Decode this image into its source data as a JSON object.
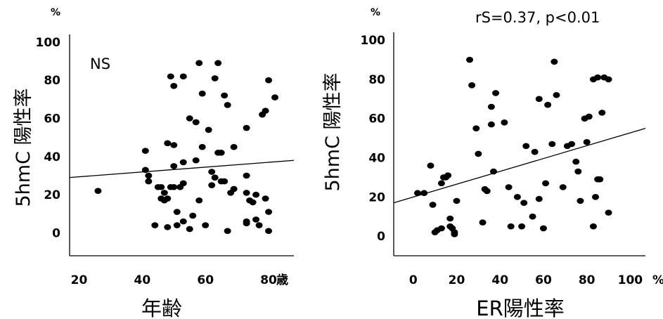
{
  "chart_data": [
    {
      "type": "scatter",
      "title": "",
      "xlabel": "年齢",
      "ylabel": "5hmC 陽性率",
      "y_unit": "%",
      "x_unit": "歳",
      "annotation": "NS",
      "xlim": [
        17,
        88
      ],
      "ylim": [
        -12,
        104
      ],
      "xticks": [
        "20",
        "40",
        "60",
        "80"
      ],
      "yticks": [
        "0",
        "20",
        "40",
        "60",
        "80",
        "100"
      ],
      "trendline": [
        [
          17,
          29
        ],
        [
          88,
          38
        ]
      ],
      "points": [
        [
          26,
          22
        ],
        [
          41,
          43
        ],
        [
          41,
          33
        ],
        [
          42,
          30
        ],
        [
          42,
          27
        ],
        [
          44,
          4
        ],
        [
          45,
          24
        ],
        [
          46,
          18
        ],
        [
          46,
          24
        ],
        [
          47,
          17
        ],
        [
          47,
          21
        ],
        [
          48,
          47
        ],
        [
          48,
          18
        ],
        [
          48,
          3
        ],
        [
          49,
          82
        ],
        [
          49,
          24
        ],
        [
          50,
          77
        ],
        [
          50,
          46
        ],
        [
          50,
          35
        ],
        [
          50,
          24
        ],
        [
          51,
          11
        ],
        [
          51,
          4
        ],
        [
          52,
          24
        ],
        [
          53,
          82
        ],
        [
          53,
          37
        ],
        [
          53,
          26
        ],
        [
          53,
          6
        ],
        [
          55,
          60
        ],
        [
          55,
          2
        ],
        [
          56,
          9
        ],
        [
          57,
          58
        ],
        [
          57,
          38
        ],
        [
          58,
          89
        ],
        [
          58,
          17
        ],
        [
          59,
          73
        ],
        [
          59,
          45
        ],
        [
          60,
          4
        ],
        [
          61,
          54
        ],
        [
          62,
          25
        ],
        [
          62,
          32
        ],
        [
          63,
          29
        ],
        [
          63,
          81
        ],
        [
          64,
          89
        ],
        [
          64,
          42
        ],
        [
          65,
          42
        ],
        [
          65,
          27
        ],
        [
          66,
          72
        ],
        [
          66,
          27
        ],
        [
          67,
          67
        ],
        [
          67,
          1
        ],
        [
          68,
          21
        ],
        [
          69,
          23
        ],
        [
          69,
          45
        ],
        [
          73,
          55
        ],
        [
          73,
          30
        ],
        [
          73,
          21
        ],
        [
          73,
          6
        ],
        [
          73,
          5
        ],
        [
          74,
          17
        ],
        [
          75,
          16
        ],
        [
          76,
          20
        ],
        [
          76,
          7
        ],
        [
          77,
          4
        ],
        [
          78,
          62
        ],
        [
          79,
          64
        ],
        [
          79,
          18
        ],
        [
          80,
          80
        ],
        [
          80,
          11
        ],
        [
          80,
          1
        ],
        [
          82,
          71
        ]
      ]
    },
    {
      "type": "scatter",
      "title": "",
      "xlabel": "ER陽性率",
      "ylabel": "5hmC 陽性率",
      "y_unit": "%",
      "x_unit": "%",
      "annotation": "rS=0.37, p<0.01",
      "xlim": [
        -9,
        107
      ],
      "ylim": [
        -10,
        104
      ],
      "xticks": [
        "0",
        "20",
        "40",
        "60",
        "80",
        "100"
      ],
      "yticks": [
        "0",
        "20",
        "40",
        "60",
        "80",
        "100"
      ],
      "trendline": [
        [
          -9,
          17
        ],
        [
          107,
          55
        ]
      ],
      "points": [
        [
          2,
          22
        ],
        [
          5,
          22
        ],
        [
          8,
          36
        ],
        [
          9,
          16
        ],
        [
          10,
          2
        ],
        [
          11,
          3
        ],
        [
          13,
          27
        ],
        [
          13,
          4
        ],
        [
          14,
          30
        ],
        [
          15,
          30
        ],
        [
          16,
          31
        ],
        [
          17,
          9
        ],
        [
          17,
          5
        ],
        [
          18,
          4
        ],
        [
          19,
          1
        ],
        [
          19,
          2
        ],
        [
          20,
          18
        ],
        [
          26,
          90
        ],
        [
          27,
          77
        ],
        [
          29,
          55
        ],
        [
          30,
          42
        ],
        [
          32,
          7
        ],
        [
          33,
          24
        ],
        [
          34,
          23
        ],
        [
          36,
          57
        ],
        [
          36,
          66
        ],
        [
          37,
          33
        ],
        [
          38,
          73
        ],
        [
          42,
          58
        ],
        [
          44,
          25
        ],
        [
          45,
          5
        ],
        [
          48,
          20
        ],
        [
          50,
          5
        ],
        [
          51,
          17
        ],
        [
          52,
          46
        ],
        [
          55,
          10
        ],
        [
          56,
          43
        ],
        [
          58,
          19
        ],
        [
          58,
          70
        ],
        [
          60,
          4
        ],
        [
          61,
          27
        ],
        [
          62,
          67
        ],
        [
          64,
          47
        ],
        [
          65,
          89
        ],
        [
          66,
          72
        ],
        [
          69,
          25
        ],
        [
          71,
          46
        ],
        [
          73,
          47
        ],
        [
          75,
          38
        ],
        [
          76,
          33
        ],
        [
          77,
          18
        ],
        [
          79,
          60
        ],
        [
          80,
          48
        ],
        [
          81,
          61
        ],
        [
          83,
          80
        ],
        [
          83,
          5
        ],
        [
          84,
          20
        ],
        [
          85,
          81
        ],
        [
          85,
          29
        ],
        [
          86,
          29
        ],
        [
          87,
          63
        ],
        [
          88,
          81
        ],
        [
          90,
          12
        ],
        [
          90,
          80
        ]
      ]
    }
  ]
}
